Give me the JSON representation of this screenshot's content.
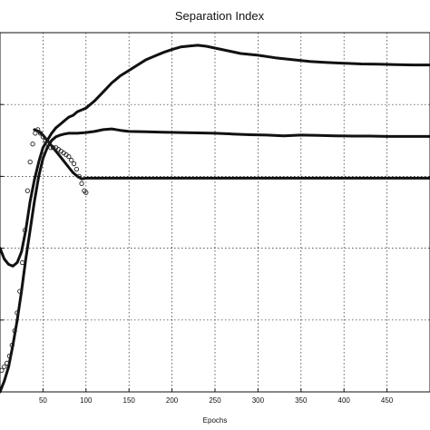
{
  "chart_data": {
    "type": "line",
    "title": "Separation Index",
    "xlabel": "Epochs",
    "ylabel": "",
    "xlim": [
      0,
      500
    ],
    "ylim": [
      0,
      1
    ],
    "x_ticks": [
      50,
      100,
      150,
      200,
      250,
      300,
      350,
      400,
      450
    ],
    "grid": true,
    "legend": "none",
    "series": [
      {
        "style": "solid",
        "points": [
          [
            0,
            0.4
          ],
          [
            5,
            0.37
          ],
          [
            10,
            0.355
          ],
          [
            15,
            0.35
          ],
          [
            20,
            0.36
          ],
          [
            25,
            0.39
          ],
          [
            30,
            0.45
          ],
          [
            35,
            0.53
          ],
          [
            40,
            0.59
          ],
          [
            45,
            0.64
          ],
          [
            50,
            0.68
          ],
          [
            55,
            0.7
          ],
          [
            60,
            0.72
          ],
          [
            65,
            0.735
          ],
          [
            70,
            0.745
          ],
          [
            75,
            0.755
          ],
          [
            80,
            0.765
          ],
          [
            85,
            0.77
          ],
          [
            90,
            0.78
          ],
          [
            95,
            0.785
          ],
          [
            100,
            0.79
          ],
          [
            110,
            0.81
          ],
          [
            120,
            0.835
          ],
          [
            130,
            0.86
          ],
          [
            140,
            0.88
          ],
          [
            150,
            0.895
          ],
          [
            160,
            0.91
          ],
          [
            170,
            0.925
          ],
          [
            180,
            0.935
          ],
          [
            190,
            0.945
          ],
          [
            200,
            0.953
          ],
          [
            210,
            0.96
          ],
          [
            220,
            0.963
          ],
          [
            230,
            0.965
          ],
          [
            240,
            0.962
          ],
          [
            250,
            0.957
          ],
          [
            260,
            0.952
          ],
          [
            270,
            0.947
          ],
          [
            280,
            0.942
          ],
          [
            300,
            0.937
          ],
          [
            320,
            0.93
          ],
          [
            340,
            0.925
          ],
          [
            360,
            0.92
          ],
          [
            380,
            0.917
          ],
          [
            400,
            0.915
          ],
          [
            420,
            0.913
          ],
          [
            440,
            0.912
          ],
          [
            460,
            0.911
          ],
          [
            480,
            0.91
          ],
          [
            500,
            0.91
          ]
        ]
      },
      {
        "style": "solid",
        "points": [
          [
            0,
            0.0
          ],
          [
            5,
            0.03
          ],
          [
            10,
            0.07
          ],
          [
            15,
            0.13
          ],
          [
            20,
            0.2
          ],
          [
            25,
            0.28
          ],
          [
            30,
            0.37
          ],
          [
            35,
            0.45
          ],
          [
            40,
            0.53
          ],
          [
            45,
            0.6
          ],
          [
            50,
            0.65
          ],
          [
            55,
            0.68
          ],
          [
            60,
            0.7
          ],
          [
            65,
            0.71
          ],
          [
            70,
            0.715
          ],
          [
            75,
            0.718
          ],
          [
            80,
            0.72
          ],
          [
            90,
            0.72
          ],
          [
            100,
            0.722
          ],
          [
            110,
            0.725
          ],
          [
            120,
            0.73
          ],
          [
            130,
            0.732
          ],
          [
            140,
            0.728
          ],
          [
            150,
            0.725
          ],
          [
            170,
            0.724
          ],
          [
            190,
            0.723
          ],
          [
            210,
            0.722
          ],
          [
            230,
            0.721
          ],
          [
            250,
            0.72
          ],
          [
            270,
            0.718
          ],
          [
            290,
            0.716
          ],
          [
            310,
            0.715
          ],
          [
            330,
            0.713
          ],
          [
            350,
            0.715
          ],
          [
            370,
            0.714
          ],
          [
            390,
            0.713
          ],
          [
            410,
            0.712
          ],
          [
            430,
            0.712
          ],
          [
            450,
            0.711
          ],
          [
            470,
            0.711
          ],
          [
            500,
            0.711
          ]
        ]
      },
      {
        "style": "solid",
        "points": [
          [
            40,
            0.73
          ],
          [
            45,
            0.725
          ],
          [
            50,
            0.715
          ],
          [
            55,
            0.7
          ],
          [
            60,
            0.685
          ],
          [
            65,
            0.67
          ],
          [
            70,
            0.655
          ],
          [
            75,
            0.64
          ],
          [
            80,
            0.625
          ],
          [
            85,
            0.61
          ],
          [
            90,
            0.6
          ],
          [
            95,
            0.593
          ],
          [
            100,
            0.595
          ],
          [
            120,
            0.595
          ],
          [
            150,
            0.595
          ],
          [
            200,
            0.595
          ],
          [
            250,
            0.595
          ],
          [
            300,
            0.595
          ],
          [
            350,
            0.595
          ],
          [
            400,
            0.595
          ],
          [
            450,
            0.595
          ],
          [
            500,
            0.595
          ]
        ]
      },
      {
        "style": "marker-circle",
        "points": [
          [
            2,
            0.06
          ],
          [
            5,
            0.07
          ],
          [
            8,
            0.08
          ],
          [
            11,
            0.1
          ],
          [
            14,
            0.13
          ],
          [
            17,
            0.17
          ],
          [
            20,
            0.22
          ],
          [
            23,
            0.28
          ],
          [
            26,
            0.36
          ],
          [
            29,
            0.45
          ],
          [
            32,
            0.56
          ],
          [
            35,
            0.64
          ],
          [
            38,
            0.69
          ],
          [
            41,
            0.72
          ],
          [
            44,
            0.73
          ],
          [
            47,
            0.72
          ],
          [
            50,
            0.71
          ],
          [
            53,
            0.7
          ],
          [
            56,
            0.69
          ],
          [
            59,
            0.68
          ],
          [
            62,
            0.68
          ],
          [
            65,
            0.68
          ],
          [
            68,
            0.675
          ],
          [
            71,
            0.67
          ],
          [
            74,
            0.665
          ],
          [
            77,
            0.66
          ],
          [
            80,
            0.655
          ],
          [
            83,
            0.645
          ],
          [
            86,
            0.635
          ],
          [
            89,
            0.62
          ],
          [
            92,
            0.6
          ],
          [
            95,
            0.58
          ],
          [
            98,
            0.56
          ],
          [
            100,
            0.555
          ]
        ]
      }
    ]
  }
}
